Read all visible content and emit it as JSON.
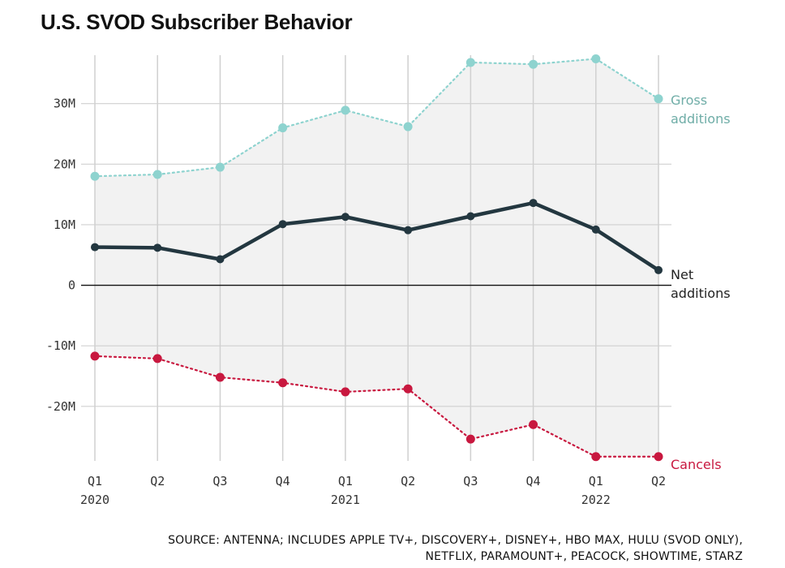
{
  "colors": {
    "gross": "#8ed3cf",
    "gross_label": "#6fada7",
    "net": "#233740",
    "cancels": "#c8183f",
    "area": "#f2f2f2",
    "grid": "#d0d0d0",
    "zero_line": "#111111"
  },
  "source": {
    "line1": "SOURCE: ANTENNA; INCLUDES APPLE TV+, DISCOVERY+, DISNEY+, HBO MAX, HULU (SVOD ONLY),",
    "line2": "NETFLIX, PARAMOUNT+, PEACOCK, SHOWTIME, STARZ"
  },
  "chart_data": {
    "type": "line",
    "title": "U.S. SVOD Subscriber Behavior",
    "xlabel": "",
    "ylabel": "",
    "categories": [
      "Q1 2020",
      "Q2 2020",
      "Q3 2020",
      "Q4 2020",
      "Q1 2021",
      "Q2 2021",
      "Q3 2021",
      "Q4 2021",
      "Q1 2022",
      "Q2 2022"
    ],
    "x_tick_labels": [
      "Q1",
      "Q2",
      "Q3",
      "Q4",
      "Q1",
      "Q2",
      "Q3",
      "Q4",
      "Q1",
      "Q2"
    ],
    "x_year_labels": [
      {
        "index": 0,
        "label": "2020"
      },
      {
        "index": 4,
        "label": "2021"
      },
      {
        "index": 8,
        "label": "2022"
      }
    ],
    "y_ticks": [
      {
        "value": 30,
        "label": "30M"
      },
      {
        "value": 20,
        "label": "20M"
      },
      {
        "value": 10,
        "label": "10M"
      },
      {
        "value": 0,
        "label": "0"
      },
      {
        "value": -10,
        "label": "-10M"
      },
      {
        "value": -20,
        "label": "-20M"
      }
    ],
    "y_unit": "millions",
    "ylim": [
      -29,
      38
    ],
    "grid": true,
    "shaded_area_between": [
      "Gross additions",
      "Cancels"
    ],
    "series": [
      {
        "name": "Gross additions",
        "key": "gross",
        "style": "dotted",
        "values": [
          18.0,
          18.3,
          19.5,
          26.0,
          28.9,
          26.2,
          36.8,
          36.5,
          37.4,
          30.8
        ]
      },
      {
        "name": "Net additions",
        "key": "net",
        "style": "solid",
        "values": [
          6.3,
          6.2,
          4.3,
          10.1,
          11.3,
          9.1,
          11.4,
          13.6,
          9.2,
          2.5
        ]
      },
      {
        "name": "Cancels",
        "key": "cancels",
        "style": "dotted",
        "values": [
          -11.7,
          -12.1,
          -15.2,
          -16.1,
          -17.6,
          -17.1,
          -25.4,
          -23.0,
          -28.3,
          -28.3
        ]
      }
    ],
    "series_labels": {
      "gross": [
        "Gross",
        "additions"
      ],
      "net": [
        "Net",
        "additions"
      ],
      "cancels": [
        "Cancels"
      ]
    }
  }
}
